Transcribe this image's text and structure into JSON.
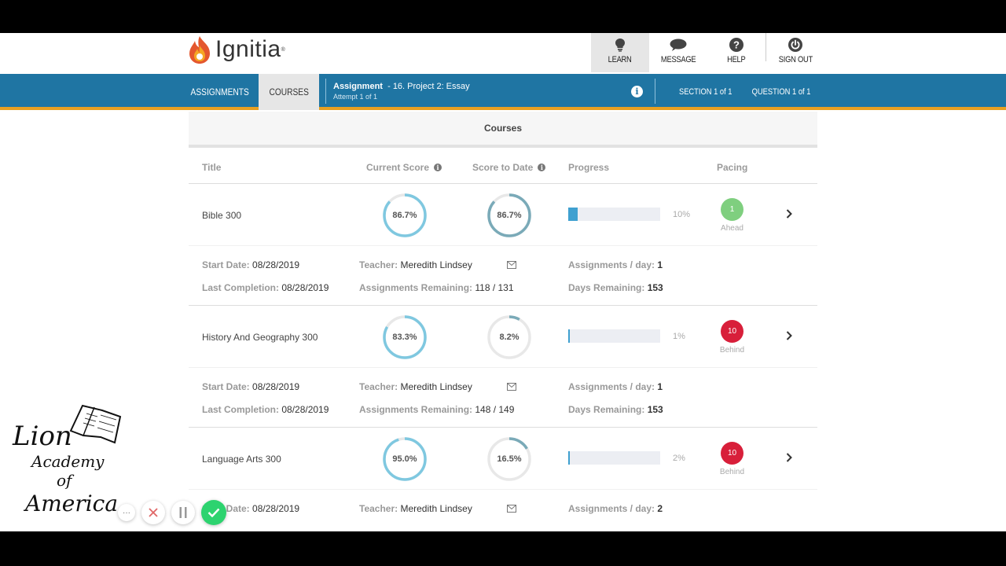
{
  "app": {
    "brand": "Ignitia",
    "brand_mark": "®"
  },
  "top_nav": [
    {
      "label": "LEARN",
      "icon": "lightbulb-icon",
      "active": true
    },
    {
      "label": "MESSAGE",
      "icon": "chat-bubble-icon",
      "active": false
    },
    {
      "label": "HELP",
      "icon": "help-icon",
      "active": false
    },
    {
      "label": "SIGN OUT",
      "icon": "power-icon",
      "active": false
    }
  ],
  "blue_bar": {
    "tab_assignments": "ASSIGNMENTS",
    "tab_courses": "COURSES",
    "assignment_label": "Assignment",
    "assignment_name": "- 16. Project 2: Essay",
    "attempt": "Attempt 1 of 1",
    "info_icon": "i",
    "section": "SECTION 1 of 1",
    "question": "QUESTION 1 of 1"
  },
  "panel_title": "Courses",
  "table_headers": {
    "title": "Title",
    "current_score": "Current Score",
    "score_to_date": "Score to Date",
    "progress": "Progress",
    "pacing": "Pacing",
    "info_glyph": "i"
  },
  "detail_labels": {
    "start_date": "Start Date: ",
    "last_completion": "Last Completion: ",
    "teacher": "Teacher: ",
    "assignments_remaining": "Assignments Remaining: ",
    "assignments_per_day": "Assignments / day: ",
    "days_remaining": "Days Remaining: "
  },
  "courses": [
    {
      "title": "Bible 300",
      "current_score": "86.7%",
      "current_score_value": 86.7,
      "score_to_date": "86.7%",
      "score_to_date_value": 86.7,
      "progress": "10%",
      "progress_value": 10,
      "pacing_count": "1",
      "pacing_status": "Ahead",
      "start_date": "08/28/2019",
      "last_completion": "08/28/2019",
      "teacher": "Meredith Lindsey",
      "assignments_remaining": "118 / 131",
      "assignments_per_day": "1",
      "days_remaining": "153"
    },
    {
      "title": "History And Geography 300",
      "current_score": "83.3%",
      "current_score_value": 83.3,
      "score_to_date": "8.2%",
      "score_to_date_value": 8.2,
      "progress": "1%",
      "progress_value": 1,
      "pacing_count": "10",
      "pacing_status": "Behind",
      "start_date": "08/28/2019",
      "last_completion": "08/28/2019",
      "teacher": "Meredith Lindsey",
      "assignments_remaining": "148 / 149",
      "assignments_per_day": "1",
      "days_remaining": "153"
    },
    {
      "title": "Language Arts 300",
      "current_score": "95.0%",
      "current_score_value": 95.0,
      "score_to_date": "16.5%",
      "score_to_date_value": 16.5,
      "progress": "2%",
      "progress_value": 2,
      "pacing_count": "10",
      "pacing_status": "Behind",
      "start_date": "08/28/2019",
      "teacher": "Meredith Lindsey",
      "assignments_per_day": "2"
    }
  ],
  "watermark": {
    "lines": [
      "Lion",
      "Academy",
      "of",
      "America"
    ]
  },
  "recorder_controls": {
    "more": "···"
  },
  "colors": {
    "brand_blue": "#1f75a3",
    "accent_orange": "#e8a021",
    "ring_current": "#7fc8e0",
    "ring_to_date": "#7aaab8",
    "ahead_green": "#7fcf7f",
    "behind_red": "#d81f3a",
    "progress_fill": "#3fa0d0"
  }
}
